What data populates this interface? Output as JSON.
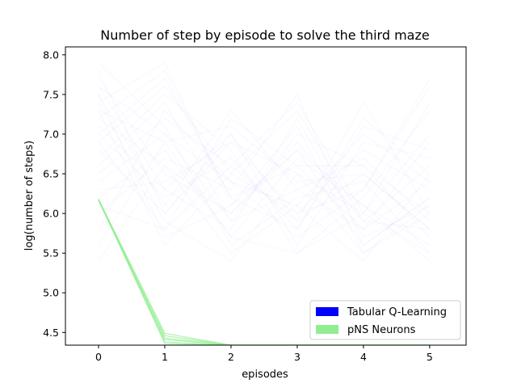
{
  "chart_data": {
    "type": "line",
    "title": "Number of step by episode to solve the third maze",
    "xlabel": "episodes",
    "ylabel": "log(number of steps)",
    "xlim": [
      -0.5,
      5.55
    ],
    "ylim": [
      4.34,
      8.1
    ],
    "xticks": [
      0,
      1,
      2,
      3,
      4,
      5
    ],
    "yticks": [
      4.5,
      5.0,
      5.5,
      6.0,
      6.5,
      7.0,
      7.5,
      8.0
    ],
    "ytick_labels": [
      "4.5",
      "5.0",
      "5.5",
      "6.0",
      "6.5",
      "7.0",
      "7.5",
      "8.0"
    ],
    "grid": false,
    "legend_position": "lower-right",
    "series": [
      {
        "name": "Tabular Q-Learning",
        "color": "#0000ff",
        "opacity": 0.025,
        "runs": [
          [
            7.6,
            6.3,
            7.0,
            5.9,
            6.5,
            5.8
          ],
          [
            7.4,
            7.9,
            6.1,
            6.8,
            5.6,
            6.2
          ],
          [
            6.9,
            5.8,
            6.6,
            7.4,
            6.0,
            5.5
          ],
          [
            7.2,
            6.6,
            5.5,
            6.1,
            7.0,
            6.4
          ],
          [
            5.8,
            7.3,
            6.4,
            5.7,
            6.3,
            7.6
          ],
          [
            7.8,
            6.0,
            6.9,
            6.5,
            5.5,
            6.0
          ],
          [
            6.4,
            7.0,
            5.9,
            7.0,
            6.6,
            5.7
          ],
          [
            7.0,
            7.7,
            6.2,
            5.8,
            7.2,
            6.5
          ],
          [
            7.5,
            6.1,
            7.3,
            6.3,
            5.8,
            6.9
          ],
          [
            6.2,
            6.8,
            5.7,
            6.7,
            6.1,
            5.4
          ],
          [
            7.3,
            5.6,
            6.5,
            6.0,
            6.8,
            6.3
          ],
          [
            6.7,
            7.5,
            6.8,
            5.5,
            6.2,
            7.3
          ],
          [
            7.1,
            6.3,
            5.8,
            7.2,
            5.7,
            6.1
          ],
          [
            5.6,
            6.9,
            7.1,
            6.4,
            6.5,
            5.8
          ],
          [
            7.7,
            6.5,
            6.0,
            6.9,
            5.9,
            6.6
          ],
          [
            6.5,
            7.2,
            6.6,
            5.9,
            7.4,
            6.0
          ],
          [
            7.4,
            5.9,
            5.4,
            6.5,
            6.0,
            7.0
          ],
          [
            6.0,
            6.7,
            6.3,
            7.5,
            5.6,
            6.2
          ],
          [
            7.9,
            7.1,
            5.6,
            6.2,
            6.4,
            5.5
          ],
          [
            6.8,
            6.0,
            7.0,
            5.6,
            6.9,
            6.7
          ],
          [
            7.2,
            7.8,
            6.2,
            6.6,
            5.8,
            6.4
          ],
          [
            6.3,
            6.4,
            6.9,
            6.0,
            6.3,
            7.7
          ],
          [
            7.5,
            5.7,
            6.1,
            7.1,
            5.5,
            6.1
          ],
          [
            6.6,
            7.4,
            5.9,
            6.3,
            6.7,
            5.9
          ],
          [
            7.0,
            6.2,
            6.7,
            5.8,
            7.1,
            6.8
          ],
          [
            5.4,
            6.6,
            6.0,
            6.8,
            6.1,
            5.6
          ],
          [
            7.6,
            7.0,
            6.4,
            6.1,
            5.4,
            6.5
          ],
          [
            6.1,
            5.8,
            7.2,
            6.6,
            6.6,
            6.0
          ],
          [
            7.3,
            6.9,
            5.7,
            5.5,
            6.0,
            7.4
          ],
          [
            6.9,
            7.6,
            6.5,
            7.3,
            5.9,
            5.8
          ]
        ]
      },
      {
        "name": "pNS Neurons",
        "color": "#90ee90",
        "opacity": 0.7,
        "runs": [
          [
            6.18,
            4.49,
            4.34,
            4.34,
            4.34,
            4.34
          ],
          [
            6.17,
            4.46,
            4.34,
            4.34,
            4.34,
            4.34
          ],
          [
            6.18,
            4.43,
            4.34,
            4.34,
            4.34,
            4.34
          ],
          [
            6.16,
            4.41,
            4.34,
            4.34,
            4.34,
            4.34
          ],
          [
            6.17,
            4.38,
            4.34,
            4.34,
            4.34,
            4.34
          ],
          [
            6.18,
            4.36,
            4.34,
            4.34,
            4.34,
            4.34
          ]
        ]
      }
    ]
  }
}
